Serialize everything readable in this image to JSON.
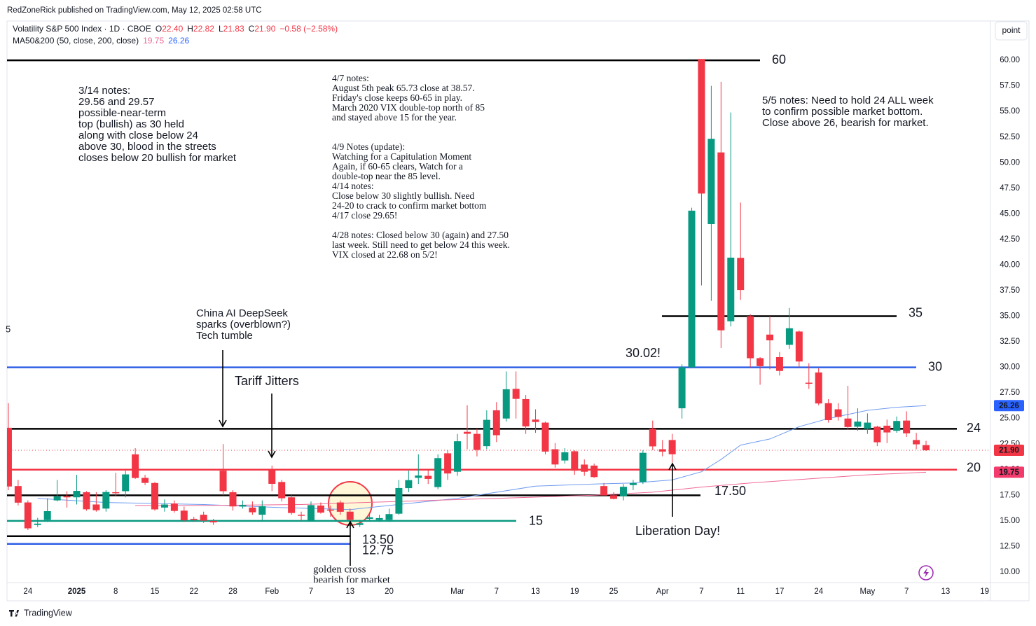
{
  "header": "RedZoneRick published on TradingView.com, May 12, 2025 02:58 UTC",
  "legend": {
    "title": "Volatility S&P 500 Index · 1D · CBOE",
    "ohlc": [
      [
        "O",
        "22.40"
      ],
      [
        "H",
        "22.82"
      ],
      [
        "L",
        "21.83"
      ],
      [
        "C",
        "21.90"
      ]
    ],
    "change": "−0.58 (−2.58%)",
    "ma_title": "MA50&200 (50, close, 200, close)",
    "ma_values": [
      "19.75",
      "26.26"
    ]
  },
  "button": "point",
  "footer": "TradingView",
  "chart_data": {
    "type": "candlestick",
    "up_color": "#089981",
    "down_color": "#f23645",
    "open": [
      24.1,
      18.4,
      16.8,
      14.6,
      15.1,
      17.0,
      17.4,
      17.3,
      17.8,
      16.6,
      16.2,
      17.8,
      17.9,
      21.5,
      19.2,
      18.7,
      16.3,
      16.7,
      16.0,
      15.2,
      15.6,
      15.0,
      19.9,
      17.8,
      16.4,
      16.3,
      15.6,
      20.0,
      18.8,
      17.3,
      15.6,
      15.0,
      16.5,
      16.1,
      16.8,
      15.9,
      14.6,
      15.2,
      15.1,
      15.1,
      15.7,
      18.2,
      19.2,
      19.4,
      18.3,
      21.6,
      19.8,
      23.7,
      23.5,
      22.3,
      25.8,
      25.0,
      27.9,
      26.9,
      24.9,
      24.6,
      22.0,
      20.9,
      21.8,
      20.5,
      20.4,
      18.4,
      17.5,
      17.4,
      18.5,
      18.8,
      24.0,
      22.0,
      22.9,
      26.0,
      30.0,
      60.13,
      44.0,
      51.0,
      34.5,
      40.7,
      35.0,
      30.9,
      33.2,
      31.0,
      32.2,
      33.5,
      28.5,
      29.5,
      26.5,
      25.9,
      25.0,
      24.2,
      24.0,
      24.2,
      24.3,
      23.8,
      24.8,
      22.9,
      22.4
    ],
    "high": [
      26.5,
      19.0,
      17.0,
      15.3,
      17.2,
      19.0,
      17.9,
      19.5,
      17.9,
      17.8,
      18.0,
      19.7,
      19.9,
      22.1,
      19.5,
      18.8,
      17.1,
      17.0,
      16.4,
      15.4,
      15.9,
      15.2,
      22.5,
      18.0,
      17.0,
      16.9,
      17.0,
      20.4,
      19.0,
      17.5,
      15.9,
      16.9,
      16.8,
      16.5,
      17.0,
      16.2,
      15.1,
      15.8,
      15.6,
      16.2,
      19.0,
      19.9,
      21.5,
      20.0,
      21.5,
      21.9,
      23.5,
      26.3,
      24.0,
      25.8,
      26.6,
      29.6,
      29.6,
      27.3,
      25.9,
      24.7,
      22.6,
      22.1,
      21.9,
      21.0,
      20.6,
      18.7,
      17.8,
      18.6,
      19.0,
      21.9,
      24.8,
      22.9,
      23.5,
      30.3,
      45.6,
      60.13,
      57.5,
      57.9,
      54.9,
      46.1,
      35.2,
      31.0,
      35.0,
      31.5,
      35.8,
      33.6,
      30.4,
      29.9,
      26.9,
      26.5,
      28.2,
      26.0,
      25.5,
      24.3,
      24.9,
      25.2,
      25.7,
      23.6,
      22.82
    ],
    "low": [
      18.0,
      16.5,
      14.1,
      14.4,
      14.9,
      16.9,
      16.3,
      16.6,
      16.0,
      15.9,
      15.9,
      17.4,
      17.3,
      19.1,
      18.5,
      16.0,
      15.9,
      15.8,
      14.9,
      14.9,
      14.8,
      14.6,
      17.5,
      16.0,
      16.2,
      15.6,
      15.0,
      17.9,
      16.9,
      15.6,
      15.0,
      15.0,
      15.7,
      15.4,
      15.6,
      14.9,
      14.4,
      15.0,
      14.9,
      14.9,
      15.6,
      17.8,
      18.6,
      18.6,
      18.1,
      19.0,
      19.4,
      22.0,
      21.3,
      22.0,
      22.7,
      24.7,
      25.0,
      23.5,
      23.6,
      21.5,
      20.2,
      20.6,
      19.5,
      19.4,
      19.2,
      17.5,
      17.1,
      17.0,
      18.0,
      18.6,
      21.9,
      21.3,
      20.7,
      25.0,
      29.9,
      38.0,
      36.5,
      31.9,
      34.0,
      36.6,
      30.0,
      28.3,
      29.8,
      29.2,
      31.8,
      30.0,
      27.9,
      26.3,
      24.6,
      24.8,
      23.9,
      23.8,
      23.5,
      22.3,
      22.6,
      23.6,
      23.2,
      22.0,
      21.83
    ],
    "close": [
      18.36,
      16.78,
      14.27,
      14.73,
      15.95,
      17.4,
      17.35,
      17.93,
      16.13,
      16.04,
      17.82,
      17.7,
      19.54,
      19.19,
      18.71,
      16.12,
      16.6,
      15.97,
      15.06,
      15.1,
      15.02,
      14.85,
      17.9,
      16.41,
      16.56,
      15.84,
      16.43,
      18.62,
      17.21,
      15.77,
      15.5,
      16.54,
      15.81,
      16.02,
      15.89,
      15.1,
      14.77,
      15.35,
      15.27,
      15.66,
      18.21,
      18.98,
      19.43,
      19.1,
      21.13,
      19.63,
      22.78,
      23.51,
      21.93,
      24.87,
      23.37,
      27.86,
      26.92,
      24.23,
      24.66,
      21.77,
      20.51,
      21.7,
      19.9,
      19.8,
      19.28,
      17.48,
      17.15,
      18.33,
      18.69,
      21.65,
      22.28,
      21.77,
      21.51,
      30.02,
      45.31,
      46.98,
      52.33,
      33.62,
      40.72,
      37.56,
      30.89,
      30.12,
      32.64,
      29.65,
      33.82,
      30.57,
      28.45,
      26.47,
      24.84,
      25.15,
      24.17,
      24.7,
      24.6,
      22.68,
      23.64,
      24.76,
      23.55,
      22.48,
      21.9
    ],
    "ma": [
      {
        "color": "#6f9cf0",
        "x": [
          3,
          10,
          15,
          20,
          28,
          35,
          39,
          46,
          54,
          60,
          64,
          68,
          71,
          73,
          75,
          78,
          81,
          84,
          88,
          91,
          94
        ],
        "values": [
          17.2,
          16.8,
          16.7,
          16.6,
          16.3,
          16.1,
          16.5,
          17.2,
          18.4,
          18.6,
          18.7,
          19.0,
          19.8,
          21.0,
          22.4,
          23.0,
          24.2,
          25.0,
          25.8,
          26.1,
          26.26
        ]
      },
      {
        "color": "#f06a95",
        "x": [
          13,
          20,
          30,
          40,
          50,
          60,
          66,
          71,
          76,
          82,
          88,
          94
        ],
        "values": [
          16.5,
          16.5,
          16.6,
          16.9,
          17.2,
          17.5,
          17.8,
          18.3,
          18.7,
          19.1,
          19.5,
          19.75
        ]
      }
    ],
    "xlim": [
      -0.14,
      100.6
    ],
    "xticks": [
      {
        "value": 2,
        "label": "24"
      },
      {
        "value": 7,
        "label": "2025"
      },
      {
        "value": 11,
        "label": "8"
      },
      {
        "value": 15,
        "label": "15"
      },
      {
        "value": 19,
        "label": "22"
      },
      {
        "value": 23,
        "label": "28"
      },
      {
        "value": 27,
        "label": "Feb"
      },
      {
        "value": 31,
        "label": "7"
      },
      {
        "value": 35,
        "label": "13"
      },
      {
        "value": 39,
        "label": "20"
      },
      {
        "value": 46,
        "label": "Mar"
      },
      {
        "value": 50,
        "label": "7"
      },
      {
        "value": 54,
        "label": "13"
      },
      {
        "value": 58,
        "label": "19"
      },
      {
        "value": 62,
        "label": "25"
      },
      {
        "value": 67,
        "label": "Apr"
      },
      {
        "value": 71,
        "label": "7"
      },
      {
        "value": 75,
        "label": "11"
      },
      {
        "value": 79,
        "label": "17"
      },
      {
        "value": 83,
        "label": "24"
      },
      {
        "value": 88,
        "label": "May"
      },
      {
        "value": 92,
        "label": "7"
      },
      {
        "value": 96,
        "label": "13"
      },
      {
        "value": 100,
        "label": "19"
      }
    ],
    "ylim": [
      8.97,
      63.84
    ],
    "yticks": [
      {
        "value": 60,
        "label": "60.00"
      },
      {
        "value": 57.5,
        "label": "57.50"
      },
      {
        "value": 55,
        "label": "55.00"
      },
      {
        "value": 52.5,
        "label": "52.50"
      },
      {
        "value": 50,
        "label": "50.00"
      },
      {
        "value": 47.5,
        "label": "47.50"
      },
      {
        "value": 45,
        "label": "45.00"
      },
      {
        "value": 42.5,
        "label": "42.50"
      },
      {
        "value": 40,
        "label": "40.00"
      },
      {
        "value": 37.5,
        "label": "37.50"
      },
      {
        "value": 35,
        "label": "35.00"
      },
      {
        "value": 32.5,
        "label": "32.50"
      },
      {
        "value": 30,
        "label": "30.00"
      },
      {
        "value": 27.5,
        "label": "27.50"
      },
      {
        "value": 25,
        "label": "25.00"
      },
      {
        "value": 22.5,
        "label": "22.50"
      },
      {
        "value": 20,
        "label": "20.00"
      },
      {
        "value": 17.5,
        "label": "17.50"
      },
      {
        "value": 15,
        "label": "15.00"
      },
      {
        "value": 12.5,
        "label": "12.50"
      },
      {
        "value": 10,
        "label": "10.00"
      }
    ],
    "grid": false,
    "levels": [
      {
        "value": 60,
        "color": "#000000"
      },
      {
        "value": 35,
        "color": "#000000"
      },
      {
        "value": 30,
        "color": "#2e5fe6"
      },
      {
        "value": 24,
        "color": "#000000"
      },
      {
        "value": 20,
        "color": "#f23645"
      },
      {
        "value": 17.5,
        "label": "17.50",
        "color": "#000000"
      },
      {
        "value": 15,
        "color": "#089981"
      },
      {
        "value": 13.5,
        "label": "13.50",
        "color": "#000000"
      },
      {
        "value": 12.75,
        "color": "#2e5fe6"
      }
    ],
    "badges": [
      {
        "value": 26.26,
        "color": "#2962ff"
      },
      {
        "value": 21.9,
        "label": "21.90",
        "color": "#f23645"
      },
      {
        "value": 19.75,
        "color": "#f23a6b"
      }
    ]
  },
  "notes": [
    [
      "3/14 notes:",
      "29.56 and 29.57",
      "possible-near-term",
      "top (bullish) as 30 held",
      "along with close below 24",
      "above 30, blood in the streets",
      "closes below 20 bullish for market"
    ],
    [
      "4/7 notes:",
      "August 5th peak 65.73 close at 38.57.",
      "Friday's close keeps 60-65 in play.",
      "March 2020 VIX double-top north of 85",
      "and stayed above 15 for the year."
    ],
    [
      "4/9 Notes (update):",
      "Watching for a Capitulation Moment",
      "Again, if 60-65 clears, Watch for a",
      "double-top near the 85 level."
    ],
    [
      "4/14 notes:",
      "Close below 30 slightly bullish. Need",
      "24-20 to crack to confirm market bottom",
      "4/17 close 29.65!"
    ],
    [
      "4/28 notes: Closed below 30 (again) and 27.50",
      "last week. Still need to get below 24 this week.",
      "VIX closed at 22.68 on 5/2!"
    ],
    [
      "5/5 notes: Need to hold 24 ALL week",
      "to confirm possible market bottom.",
      "Close above 26, bearish for market."
    ],
    [
      "China AI DeepSeek",
      "sparks (overblown?)",
      "Tech tumble"
    ],
    [
      "golden cross",
      "bearish for market"
    ]
  ],
  "labels": [
    "Tariff Jitters",
    "30.02!",
    "Liberation Day!",
    "5"
  ]
}
